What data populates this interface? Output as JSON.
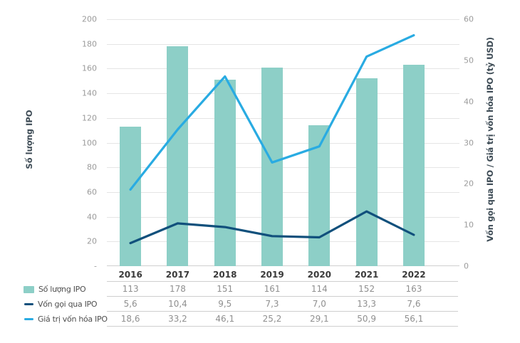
{
  "figure": {
    "background": "#ffffff"
  },
  "chart_data": {
    "type": "combo",
    "subtype": "bars on left axis + two lines on right axis",
    "grid": true,
    "legend_position": "bottom table with per-year values",
    "decimal_separator": ",",
    "categories": [
      "2016",
      "2017",
      "2018",
      "2019",
      "2020",
      "2021",
      "2022"
    ],
    "series": [
      {
        "name": "Số lượng IPO",
        "type": "bar",
        "axis": "left",
        "color": "#8dcfc7",
        "values": [
          113,
          178,
          151,
          161,
          114,
          152,
          163
        ],
        "display_values": [
          "113",
          "178",
          "151",
          "161",
          "114",
          "152",
          "163"
        ]
      },
      {
        "name": "Vốn gọi qua IPO",
        "type": "line",
        "axis": "right",
        "color": "#11507c",
        "values": [
          5.6,
          10.4,
          9.5,
          7.3,
          7.0,
          13.3,
          7.6
        ],
        "display_values": [
          "5,6",
          "10,4",
          "9,5",
          "7,3",
          "7,0",
          "13,3",
          "7,6"
        ]
      },
      {
        "name": "Giá trị vốn hóa IPO",
        "type": "line",
        "axis": "right",
        "color": "#29abe2",
        "values": [
          18.6,
          33.2,
          46.1,
          25.2,
          29.1,
          50.9,
          56.1
        ],
        "display_values": [
          "18,6",
          "33,2",
          "46,1",
          "25,2",
          "29,1",
          "50,9",
          "56,1"
        ]
      }
    ],
    "left_axis": {
      "title": "Số lượng IPO",
      "min": 0,
      "max": 200,
      "step": 20,
      "tick_labels": [
        "200",
        "180",
        "160",
        "140",
        "120",
        "100",
        "80",
        "60",
        "40",
        "20",
        "-"
      ]
    },
    "right_axis": {
      "title": "Vốn gọi qua IPO / Giá trị vốn hóa IPO (tỷ USD)",
      "min": 0,
      "max": 60,
      "step": 10,
      "tick_labels": [
        "60",
        "50",
        "40",
        "30",
        "20",
        "10",
        "0"
      ]
    },
    "colors": {
      "gridline": "#e5e5e5",
      "baseline": "#cfcfcf",
      "tick_text": "#9b9b9b",
      "year_text": "#3a3a3a",
      "value_text": "#8f8f8f",
      "axis_title_text": "#3d4b55"
    }
  }
}
